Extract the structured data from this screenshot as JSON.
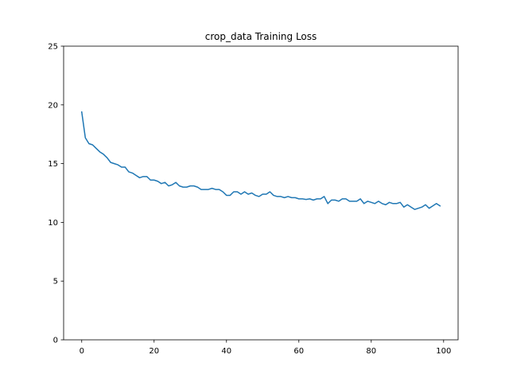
{
  "chart_data": {
    "type": "line",
    "title": "crop_data Training Loss",
    "xlabel": "",
    "ylabel": "",
    "xlim": [
      -5,
      104
    ],
    "ylim": [
      0,
      25
    ],
    "x_ticks": [
      0,
      20,
      40,
      60,
      80,
      100
    ],
    "y_ticks": [
      0,
      5,
      10,
      15,
      20,
      25
    ],
    "grid": false,
    "series": [
      {
        "color": "#1f77b4",
        "x": [
          0,
          1,
          2,
          3,
          4,
          5,
          6,
          7,
          8,
          9,
          10,
          11,
          12,
          13,
          14,
          15,
          16,
          17,
          18,
          19,
          20,
          21,
          22,
          23,
          24,
          25,
          26,
          27,
          28,
          29,
          30,
          31,
          32,
          33,
          34,
          35,
          36,
          37,
          38,
          39,
          40,
          41,
          42,
          43,
          44,
          45,
          46,
          47,
          48,
          49,
          50,
          51,
          52,
          53,
          54,
          55,
          56,
          57,
          58,
          59,
          60,
          61,
          62,
          63,
          64,
          65,
          66,
          67,
          68,
          69,
          70,
          71,
          72,
          73,
          74,
          75,
          76,
          77,
          78,
          79,
          80,
          81,
          82,
          83,
          84,
          85,
          86,
          87,
          88,
          89,
          90,
          91,
          92,
          93,
          94,
          95,
          96,
          97,
          98,
          99
        ],
        "values": [
          19.4,
          17.2,
          16.7,
          16.6,
          16.3,
          16.0,
          15.8,
          15.5,
          15.1,
          15.0,
          14.9,
          14.7,
          14.7,
          14.3,
          14.2,
          14.0,
          13.8,
          13.9,
          13.9,
          13.6,
          13.6,
          13.5,
          13.3,
          13.4,
          13.1,
          13.2,
          13.4,
          13.1,
          13.0,
          13.0,
          13.1,
          13.1,
          13.0,
          12.8,
          12.8,
          12.8,
          12.9,
          12.8,
          12.8,
          12.6,
          12.3,
          12.3,
          12.6,
          12.6,
          12.4,
          12.6,
          12.4,
          12.5,
          12.3,
          12.2,
          12.4,
          12.4,
          12.6,
          12.3,
          12.2,
          12.2,
          12.1,
          12.2,
          12.1,
          12.1,
          12.0,
          12.0,
          11.95,
          12.0,
          11.9,
          12.0,
          12.0,
          12.2,
          11.6,
          11.9,
          11.9,
          11.8,
          12.0,
          12.0,
          11.8,
          11.8,
          11.8,
          12.0,
          11.6,
          11.8,
          11.7,
          11.6,
          11.8,
          11.6,
          11.5,
          11.7,
          11.6,
          11.6,
          11.7,
          11.3,
          11.5,
          11.3,
          11.1,
          11.2,
          11.3,
          11.5,
          11.2,
          11.4,
          11.6,
          11.4
        ]
      }
    ]
  }
}
